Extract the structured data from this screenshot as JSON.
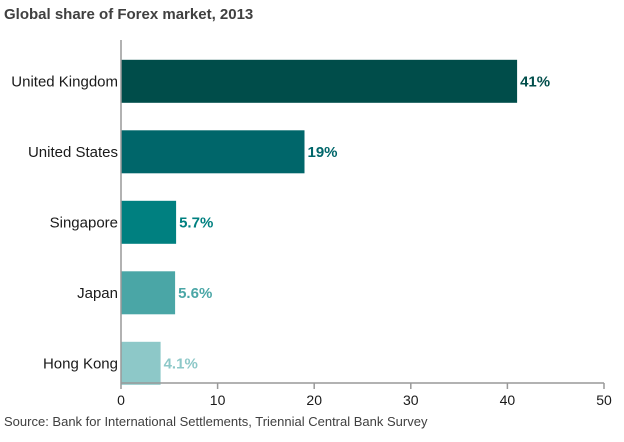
{
  "chart_data": {
    "type": "bar",
    "orientation": "horizontal",
    "title": "Global share of Forex market, 2013",
    "source": "Source: Bank for International Settlements, Triennial Central Bank Survey",
    "categories": [
      "United Kingdom",
      "United States",
      "Singapore",
      "Japan",
      "Hong Kong"
    ],
    "values": [
      41,
      19,
      5.7,
      5.6,
      4.1
    ],
    "value_labels": [
      "41%",
      "19%",
      "5.7%",
      "5.6%",
      "4.1%"
    ],
    "colors": [
      "#004d4a",
      "#00666a",
      "#008080",
      "#4aa6a6",
      "#8dc8c8"
    ],
    "xlim": [
      0,
      50
    ],
    "xticks": [
      0,
      10,
      20,
      30,
      40,
      50
    ],
    "xlabel": "",
    "ylabel": "",
    "grid": false,
    "legend": "none"
  }
}
